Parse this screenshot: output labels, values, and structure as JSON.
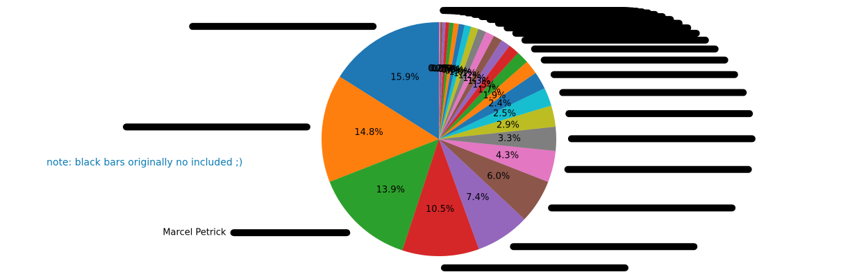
{
  "chart_data": {
    "type": "pie",
    "annotation": "note: black bars originally no included ;)",
    "categories": [
      null,
      null,
      "Marcel Petrick",
      null,
      null,
      null,
      null,
      null,
      null,
      null,
      null,
      null,
      null,
      null,
      null,
      null,
      null,
      null,
      null,
      null,
      null,
      null,
      null,
      null,
      null,
      null,
      null
    ],
    "values": [
      15.9,
      14.8,
      13.9,
      10.5,
      7.4,
      6.0,
      4.3,
      3.3,
      2.9,
      2.5,
      2.4,
      1.9,
      1.7,
      1.5,
      1.3,
      1.2,
      1.2,
      1.1,
      1.0,
      0.9,
      0.8,
      0.7,
      0.6,
      0.5,
      0.4,
      0.3,
      0.2
    ],
    "value_labels": [
      "15.9%",
      "14.8%",
      "13.9%",
      "10.5%",
      "7.4%",
      "6.0%",
      "4.3%",
      "3.3%",
      "2.9%",
      "2.5%",
      "2.4%",
      "1.9%",
      "1.7%",
      "1.5%",
      "1.3%",
      "1.2%",
      "1.2%",
      "1.1%",
      "1.0%",
      "0.9%",
      "0.8%",
      "0.7%",
      "0.6%",
      "0.5%",
      "0.4%",
      "0.3%",
      "0.2%"
    ],
    "colors": [
      "#1f77b4",
      "#ff7f0e",
      "#2ca02c",
      "#d62728",
      "#9467bd",
      "#8c564b",
      "#e377c2",
      "#7f7f7f",
      "#bcbd22",
      "#17becf"
    ],
    "start_angle": 90
  }
}
